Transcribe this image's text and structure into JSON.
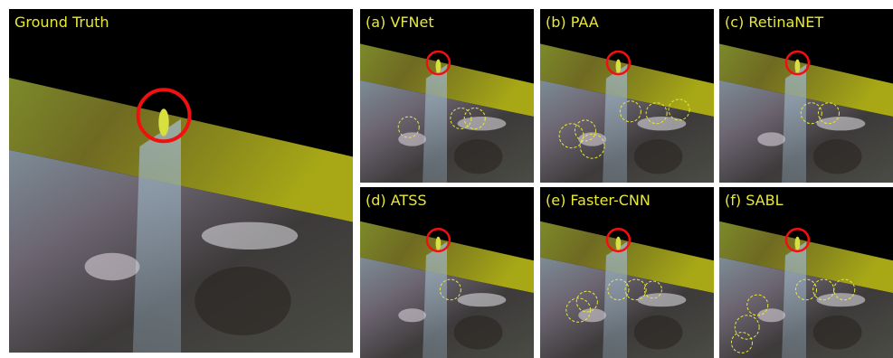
{
  "panels": [
    {
      "label": "Ground Truth"
    },
    {
      "label": "(a) VFNet"
    },
    {
      "label": "(b) PAA"
    },
    {
      "label": "(c) RetinaNET"
    },
    {
      "label": "(d) ATSS"
    },
    {
      "label": "(e) Faster-CNN"
    },
    {
      "label": "(f) SABL"
    }
  ]
}
